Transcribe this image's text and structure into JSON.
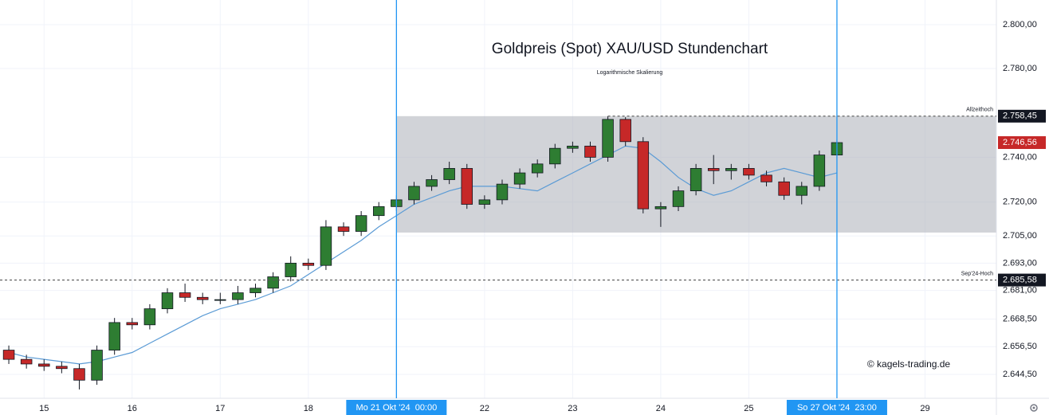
{
  "chart_data": {
    "type": "candlestick",
    "title": "Goldpreis (Spot) XAU/USD Stundenchart",
    "subtitle": "Logarithmische Skalierung",
    "watermark": "© kagels-trading.de",
    "log_scale": true,
    "grid": true,
    "up_color": "#2e7d32",
    "down_color": "#c62828",
    "ma_color": "#5b9bd5",
    "xlim": [
      14.5,
      25.81
    ],
    "xticks": [
      {
        "value": 15,
        "label": "15"
      },
      {
        "value": 16,
        "label": "16"
      },
      {
        "value": 17,
        "label": "17"
      },
      {
        "value": 18,
        "label": "18"
      },
      {
        "value": 20,
        "label": "22"
      },
      {
        "value": 21,
        "label": "23"
      },
      {
        "value": 22,
        "label": "24"
      },
      {
        "value": 23,
        "label": "25"
      },
      {
        "value": 25,
        "label": "29"
      }
    ],
    "ylim": [
      2634.2,
      2811.3
    ],
    "yticks": [
      {
        "value": 2800,
        "label": "2.800,00"
      },
      {
        "value": 2780,
        "label": "2.780,00"
      },
      {
        "value": 2740,
        "label": "2.740,00"
      },
      {
        "value": 2720,
        "label": "2.720,00"
      },
      {
        "value": 2705,
        "label": "2.705,00"
      },
      {
        "value": 2693,
        "label": "2.693,00"
      },
      {
        "value": 2681,
        "label": "2.681,00"
      },
      {
        "value": 2668.5,
        "label": "2.668,50"
      },
      {
        "value": 2656.5,
        "label": "2.656,50"
      },
      {
        "value": 2644.5,
        "label": "2.644,50"
      }
    ],
    "x": [
      14.6,
      14.8,
      15.0,
      15.2,
      15.4,
      15.6,
      15.8,
      16.0,
      16.2,
      16.4,
      16.6,
      16.8,
      17.0,
      17.2,
      17.4,
      17.6,
      17.8,
      18.0,
      18.2,
      18.4,
      18.6,
      18.8,
      19.0,
      19.2,
      19.4,
      19.6,
      19.8,
      20.0,
      20.2,
      20.4,
      20.6,
      20.8,
      21.0,
      21.2,
      21.4,
      21.6,
      21.8,
      22.0,
      22.2,
      22.4,
      22.6,
      22.8,
      23.0,
      23.2,
      23.4,
      23.6,
      23.8,
      24.0
    ],
    "open": [
      2655,
      2651,
      2649,
      2648,
      2647,
      2642,
      2655,
      2667,
      2666,
      2673,
      2680,
      2678,
      2677,
      2677,
      2680,
      2682,
      2687,
      2693,
      2692,
      2709,
      2707,
      2714,
      2718,
      2721,
      2727,
      2730,
      2735,
      2719,
      2721,
      2728,
      2733,
      2737,
      2744,
      2745,
      2740,
      2757,
      2747,
      2717,
      2718,
      2725,
      2735,
      2734,
      2735,
      2732,
      2729,
      2723,
      2727,
      2741
    ],
    "high": [
      2657,
      2653,
      2651,
      2650,
      2649,
      2657,
      2669,
      2669,
      2675,
      2682,
      2684,
      2680,
      2680,
      2683,
      2684,
      2689,
      2696,
      2695,
      2712,
      2711,
      2716,
      2720,
      2723,
      2729,
      2732,
      2738,
      2737,
      2723,
      2730,
      2735,
      2739,
      2746,
      2747,
      2747,
      2758.45,
      2758,
      2749,
      2720,
      2727,
      2737,
      2741,
      2737,
      2737,
      2734,
      2731,
      2729,
      2743,
      2748
    ],
    "low": [
      2649,
      2647,
      2646,
      2645,
      2638,
      2640,
      2653,
      2664,
      2664,
      2671,
      2676,
      2675,
      2675,
      2675,
      2678,
      2680,
      2685,
      2690,
      2690,
      2705,
      2705,
      2712,
      2716,
      2719,
      2725,
      2728,
      2717,
      2717,
      2719,
      2726,
      2731,
      2735,
      2742,
      2738,
      2738,
      2745,
      2715,
      2709,
      2716,
      2723,
      2728,
      2730,
      2730,
      2727,
      2721,
      2719,
      2725,
      2739
    ],
    "close": [
      2651,
      2649,
      2648,
      2647,
      2642,
      2655,
      2667,
      2666,
      2673,
      2680,
      2678,
      2677,
      2677,
      2680,
      2682,
      2687,
      2693,
      2692,
      2709,
      2707,
      2714,
      2718,
      2721,
      2727,
      2730,
      2735,
      2719,
      2721,
      2728,
      2733,
      2737,
      2744,
      2745,
      2740,
      2757,
      2747,
      2717,
      2718,
      2725,
      2735,
      2734,
      2735,
      2732,
      2729,
      2723,
      2727,
      2741,
      2746.56
    ],
    "ma": [
      2654,
      2652,
      2651,
      2650,
      2649,
      2650,
      2652,
      2654,
      2658,
      2662,
      2666,
      2670,
      2673,
      2675,
      2677,
      2680,
      2683,
      2688,
      2693,
      2698,
      2703,
      2709,
      2714,
      2719,
      2722,
      2725,
      2727,
      2727,
      2727,
      2726,
      2725,
      2729,
      2733,
      2737,
      2741,
      2745,
      2744,
      2738,
      2731,
      2726,
      2723,
      2725,
      2729,
      2733,
      2735,
      2733,
      2731,
      2733
    ],
    "range_box": {
      "x_start": 19.0,
      "low": 2706.5,
      "high": 2758.45
    },
    "hlines": [
      {
        "label": "Allzeithoch",
        "value": 2758.45,
        "value_label": "2.758,45",
        "x_start": 21.4
      },
      {
        "label": "Sep'24-Hoch",
        "value": 2685.58,
        "value_label": "2.685,58"
      }
    ],
    "vlines": [
      {
        "x": 19.0,
        "label": "Mo 21 Okt '24  00:00"
      },
      {
        "x": 24.0,
        "label": "So 27 Okt '24  23:00"
      }
    ],
    "last_price": {
      "value": 2746.56,
      "label": "2.746,56"
    }
  }
}
